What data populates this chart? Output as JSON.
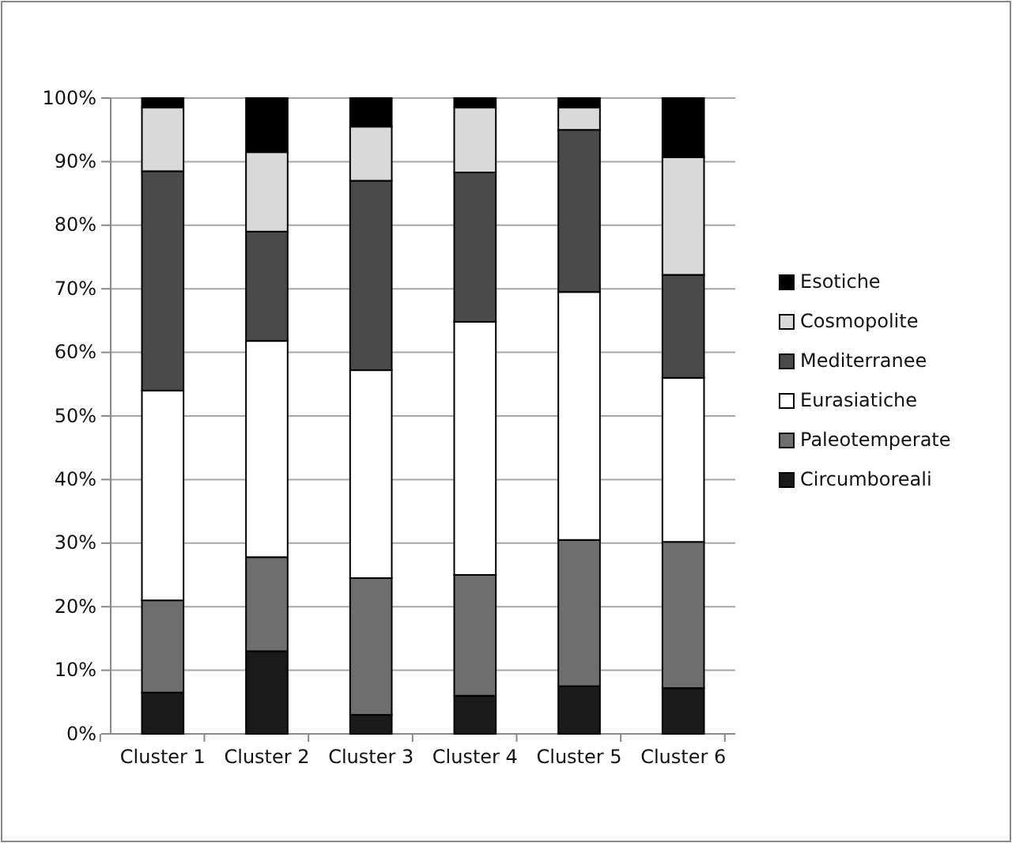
{
  "chart_data": {
    "type": "bar",
    "stacked": true,
    "categories": [
      "Cluster 1",
      "Cluster 2",
      "Cluster 3",
      "Cluster 4",
      "Cluster 5",
      "Cluster 6"
    ],
    "series": [
      {
        "name": "Circumboreali",
        "color": "#1a1a1a",
        "values": [
          6.5,
          13,
          3,
          6,
          7.5,
          7.2
        ]
      },
      {
        "name": "Paleotemperate",
        "color": "#6e6e6e",
        "values": [
          14.5,
          14.8,
          21.5,
          19,
          23,
          23
        ]
      },
      {
        "name": "Eurasiatiche",
        "color": "#ffffff",
        "values": [
          33,
          34,
          32.7,
          39.8,
          39,
          25.8
        ]
      },
      {
        "name": "Mediterranee",
        "color": "#4a4a4a",
        "values": [
          34.5,
          17.2,
          29.8,
          23.5,
          25.5,
          16.2
        ]
      },
      {
        "name": "Cosmopolite",
        "color": "#d9d9d9",
        "values": [
          10,
          12.5,
          8.5,
          10.2,
          3.5,
          18.5
        ]
      },
      {
        "name": "Esotiche",
        "color": "#000000",
        "values": [
          1.5,
          8.5,
          4.5,
          1.5,
          1.5,
          9.3
        ]
      }
    ],
    "ylim": [
      0,
      100
    ],
    "yticks": [
      {
        "value": 0,
        "label": "0%"
      },
      {
        "value": 10,
        "label": "10%"
      },
      {
        "value": 20,
        "label": "20%"
      },
      {
        "value": 30,
        "label": "30%"
      },
      {
        "value": 40,
        "label": "40%"
      },
      {
        "value": 50,
        "label": "50%"
      },
      {
        "value": 60,
        "label": "60%"
      },
      {
        "value": 70,
        "label": "70%"
      },
      {
        "value": 80,
        "label": "80%"
      },
      {
        "value": 90,
        "label": "90%"
      },
      {
        "value": 100,
        "label": "100%"
      }
    ],
    "grid": "y",
    "legend": "right"
  }
}
